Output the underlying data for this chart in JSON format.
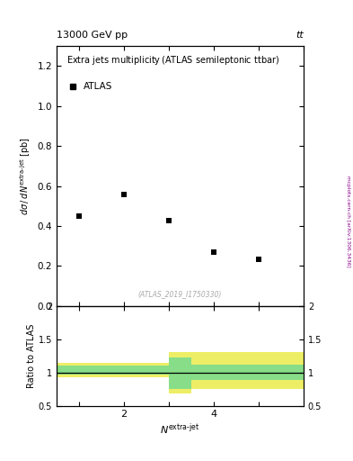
{
  "title_left": "13000 GeV pp",
  "title_right": "tt",
  "plot_title": "Extra jets multiplicity",
  "plot_subtitle": "(ATLAS semileptonic ttbar)",
  "legend_label": "ATLAS",
  "watermark": "(ATLAS_2019_I1750330)",
  "side_label": "mcplots.cern.ch [arXiv:1306.3436]",
  "ylabel_main": "dσ / d N^{extra-jet} [pb]",
  "ylabel_ratio": "Ratio to ATLAS",
  "xlabel": "N^{extra-jet}",
  "data_x": [
    1,
    2,
    3,
    4,
    5
  ],
  "data_y": [
    0.45,
    0.555,
    0.425,
    0.268,
    0.233
  ],
  "ylim_main": [
    0,
    1.3
  ],
  "ylim_ratio": [
    0.5,
    2.0
  ],
  "xlim": [
    0.5,
    6.0
  ],
  "band_edges": [
    0.5,
    2.5,
    3.0,
    3.5,
    6.0
  ],
  "green_lo": [
    0.97,
    0.97,
    0.75,
    0.88
  ],
  "green_hi": [
    1.1,
    1.1,
    1.22,
    1.12
  ],
  "yellow_lo": [
    0.92,
    0.92,
    0.68,
    0.75
  ],
  "yellow_hi": [
    1.14,
    1.14,
    1.3,
    1.3
  ],
  "green_color": "#88dd88",
  "yellow_color": "#eeee66",
  "marker_color": "black",
  "marker_size": 5,
  "yticks_main": [
    0,
    0.2,
    0.4,
    0.6,
    0.8,
    1.0,
    1.2
  ],
  "yticks_ratio": [
    0.5,
    1.0,
    1.5,
    2.0
  ],
  "xticks": [
    1,
    2,
    3,
    4,
    5
  ],
  "xticklabels": [
    "",
    "2",
    "",
    "4",
    ""
  ]
}
